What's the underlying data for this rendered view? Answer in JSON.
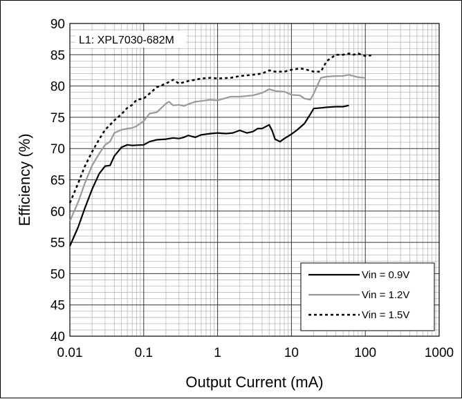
{
  "chart_data": {
    "type": "line",
    "title": "",
    "xlabel": "Output Current (mA)",
    "ylabel": "Efficiency (%)",
    "x_scale": "log",
    "xlim": [
      0.01,
      1000
    ],
    "ylim": [
      40,
      90
    ],
    "x_ticks": [
      "0.01",
      "0.1",
      "1",
      "10",
      "100",
      "1000"
    ],
    "y_ticks": [
      "40",
      "45",
      "50",
      "55",
      "60",
      "65",
      "70",
      "75",
      "80",
      "85",
      "90"
    ],
    "grid": true,
    "legend_position": "bottom-right",
    "annotation": "L1: XPL7030-682M",
    "series": [
      {
        "name": "Vin = 0.9V",
        "color": "#000000",
        "dash": "solid",
        "x": [
          0.01,
          0.013,
          0.016,
          0.02,
          0.025,
          0.03,
          0.035,
          0.04,
          0.05,
          0.06,
          0.07,
          0.1,
          0.12,
          0.15,
          0.2,
          0.25,
          0.3,
          0.35,
          0.4,
          0.5,
          0.6,
          0.8,
          1,
          1.3,
          1.6,
          2,
          2.5,
          3,
          3.5,
          4,
          5,
          5.5,
          6,
          7,
          8,
          10,
          12,
          15,
          18,
          20,
          25,
          30,
          40,
          50,
          60
        ],
        "y": [
          54.4,
          57.5,
          60.5,
          63.5,
          66.0,
          67.2,
          67.3,
          68.8,
          70.2,
          70.6,
          70.5,
          70.6,
          71.1,
          71.4,
          71.5,
          71.7,
          71.6,
          71.8,
          72.1,
          71.8,
          72.2,
          72.4,
          72.5,
          72.4,
          72.5,
          72.9,
          72.5,
          72.7,
          73.2,
          73.2,
          73.8,
          72.8,
          71.5,
          71.1,
          71.6,
          72.3,
          73.0,
          74.0,
          75.5,
          76.4,
          76.5,
          76.6,
          76.7,
          76.7,
          76.9
        ]
      },
      {
        "name": "Vin = 1.2V",
        "color": "#999999",
        "dash": "solid",
        "x": [
          0.01,
          0.013,
          0.016,
          0.02,
          0.025,
          0.03,
          0.035,
          0.04,
          0.05,
          0.06,
          0.07,
          0.08,
          0.1,
          0.12,
          0.15,
          0.2,
          0.22,
          0.25,
          0.3,
          0.35,
          0.4,
          0.5,
          0.6,
          0.8,
          1,
          1.5,
          2,
          3,
          4,
          5,
          6,
          8,
          10,
          13,
          15,
          18,
          20,
          25,
          30,
          40,
          50,
          60,
          80,
          100
        ],
        "y": [
          58.4,
          61.5,
          64.5,
          67.3,
          69.2,
          70.6,
          71.1,
          72.5,
          73.0,
          73.2,
          73.3,
          73.6,
          74.4,
          75.6,
          75.8,
          77.2,
          77.5,
          76.9,
          77.0,
          76.8,
          77.1,
          77.5,
          77.6,
          77.8,
          77.7,
          78.3,
          78.3,
          78.5,
          78.9,
          79.5,
          79.2,
          79.1,
          78.6,
          78.5,
          78.0,
          77.8,
          78.8,
          81.3,
          81.5,
          81.6,
          81.6,
          81.8,
          81.4,
          81.3
        ]
      },
      {
        "name": "Vin = 1.5V",
        "color": "#000000",
        "dash": "dashed",
        "x": [
          0.01,
          0.013,
          0.016,
          0.02,
          0.025,
          0.03,
          0.035,
          0.04,
          0.05,
          0.06,
          0.07,
          0.08,
          0.1,
          0.12,
          0.15,
          0.2,
          0.25,
          0.3,
          0.4,
          0.5,
          0.6,
          0.8,
          1,
          1.5,
          2,
          3,
          4,
          5,
          6,
          8,
          10,
          13,
          15,
          20,
          25,
          30,
          40,
          50,
          60,
          70,
          80,
          100,
          120
        ],
        "y": [
          61.3,
          64.5,
          67.2,
          69.5,
          71.5,
          73.0,
          73.8,
          74.5,
          75.5,
          76.5,
          77.0,
          77.8,
          78.0,
          78.8,
          79.8,
          80.4,
          81.0,
          80.4,
          80.8,
          81.0,
          81.2,
          81.3,
          81.2,
          81.3,
          81.6,
          81.8,
          82.0,
          82.5,
          82.3,
          82.3,
          82.6,
          82.8,
          82.7,
          82.3,
          82.3,
          84.0,
          85.0,
          85.0,
          85.2,
          85.0,
          85.2,
          84.8,
          84.9
        ]
      }
    ]
  }
}
